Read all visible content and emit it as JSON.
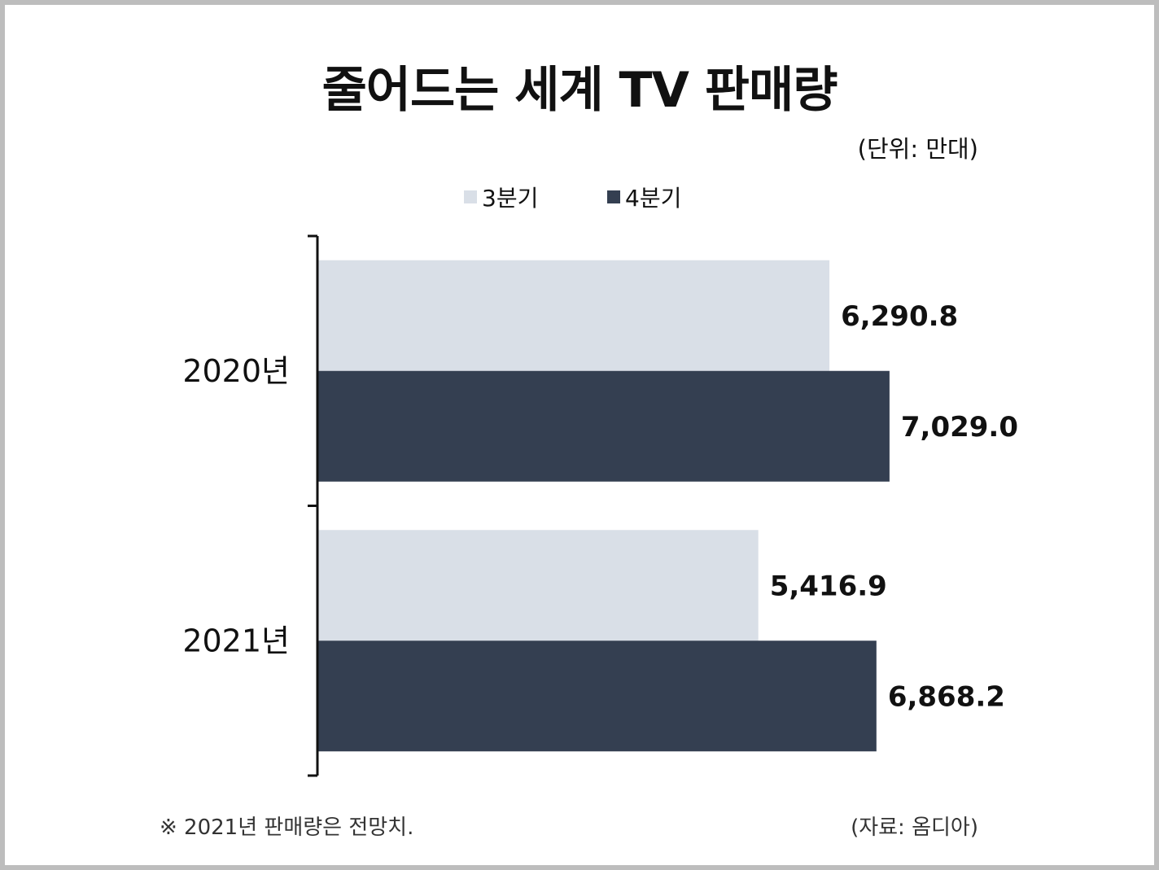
{
  "title": "줄어드는 세계 TV 판매량",
  "unit_label": "(단위: 만대)",
  "footnote": "※ 2021년 판매량은 전망치.",
  "source": "(자료: 옴디아)",
  "colors": {
    "q3": "#d9dfe7",
    "q4": "#343f51",
    "axis": "#111111"
  },
  "chart_data": {
    "type": "bar",
    "orientation": "horizontal",
    "categories": [
      "2020년",
      "2021년"
    ],
    "series": [
      {
        "name": "3분기",
        "values": [
          6290.8,
          5416.9
        ],
        "labels": [
          "6,290.8",
          "5,416.9"
        ]
      },
      {
        "name": "4분기",
        "values": [
          7029.0,
          6868.2
        ],
        "labels": [
          "7,029.0",
          "6,868.2"
        ]
      }
    ],
    "xlim": [
      0,
      9000
    ],
    "grid": false,
    "legend_position": "top"
  }
}
